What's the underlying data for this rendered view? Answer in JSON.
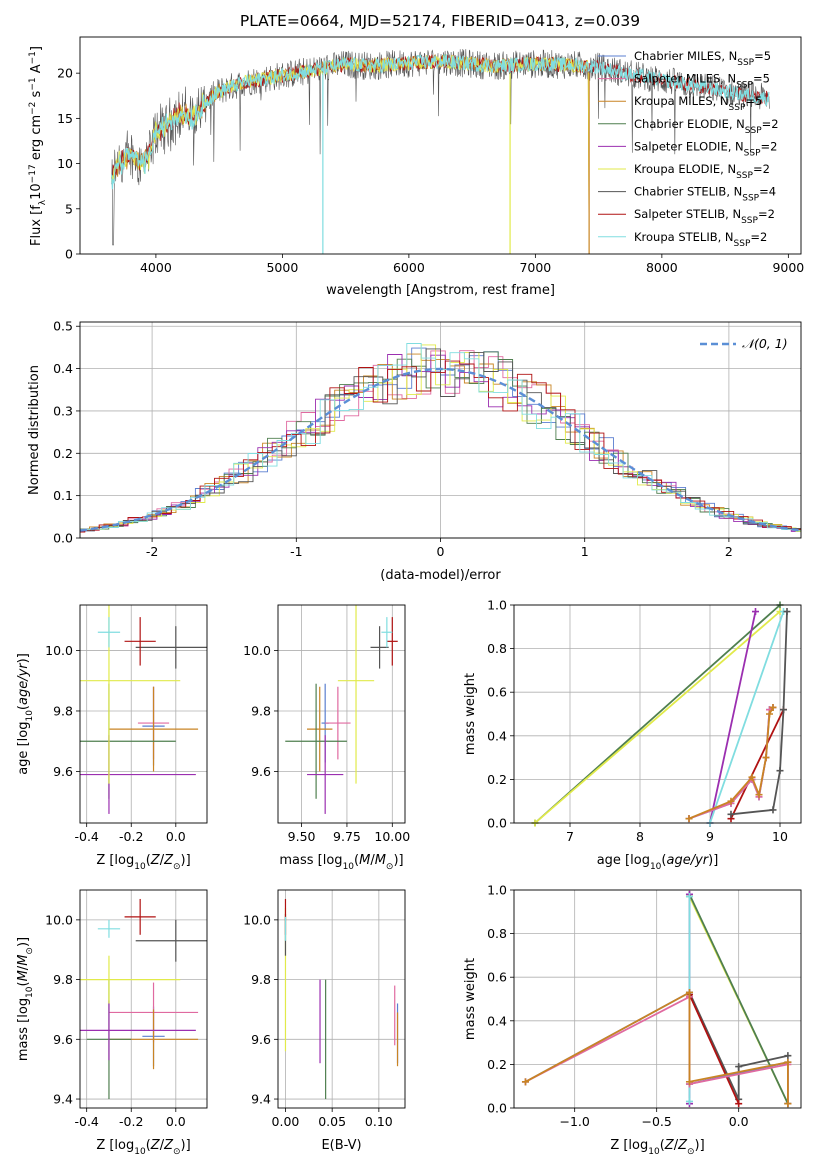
{
  "figure_title": "PLATE=0664, MJD=52174, FIBERID=0413, z=0.039",
  "colors": {
    "Chabrier MILES": "#5b7fd0",
    "Salpeter MILES": "#e06aa0",
    "Kroupa MILES": "#c98424",
    "Chabrier ELODIE": "#4f7f4f",
    "Salpeter ELODIE": "#9b2fb0",
    "Kroupa ELODIE": "#e1ea4a",
    "Chabrier STELIB": "#555555",
    "Salpeter STELIB": "#b01212",
    "Kroupa STELIB": "#80dde0"
  },
  "legend": {
    "panel1": [
      {
        "label": "Chabrier MILES, N",
        "sub": "SSP",
        "suffix": "=5",
        "color_key": "Chabrier MILES"
      },
      {
        "label": "Salpeter MILES, N",
        "sub": "SSP",
        "suffix": "=5",
        "color_key": "Salpeter MILES"
      },
      {
        "label": "Kroupa MILES, N",
        "sub": "SSP",
        "suffix": "=5",
        "color_key": "Kroupa MILES"
      },
      {
        "label": "Chabrier ELODIE, N",
        "sub": "SSP",
        "suffix": "=2",
        "color_key": "Chabrier ELODIE"
      },
      {
        "label": "Salpeter ELODIE, N",
        "sub": "SSP",
        "suffix": "=2",
        "color_key": "Salpeter ELODIE"
      },
      {
        "label": "Kroupa ELODIE, N",
        "sub": "SSP",
        "suffix": "=2",
        "color_key": "Kroupa ELODIE"
      },
      {
        "label": "Chabrier STELIB, N",
        "sub": "SSP",
        "suffix": "=4",
        "color_key": "Chabrier STELIB"
      },
      {
        "label": "Salpeter STELIB, N",
        "sub": "SSP",
        "suffix": "=2",
        "color_key": "Salpeter STELIB"
      },
      {
        "label": "Kroupa STELIB, N",
        "sub": "SSP",
        "suffix": "=2",
        "color_key": "Kroupa STELIB"
      }
    ],
    "panel2": [
      {
        "label": "𝒩(0, 1)",
        "color": "#5b8fd6"
      }
    ]
  },
  "chart_data": [
    {
      "id": "spectrum",
      "type": "line",
      "xlabel": "wavelength [Angstrom, rest frame]",
      "ylabel": "Flux [fλ10⁻¹⁷ erg cm⁻² s⁻¹ A⁻¹]",
      "xlim": [
        3400,
        9100
      ],
      "ylim": [
        0,
        24
      ],
      "xticks": [
        4000,
        5000,
        6000,
        7000,
        8000,
        9000
      ],
      "yticks": [
        0,
        5,
        10,
        15,
        20
      ],
      "grid": false,
      "legend_position": "top-right",
      "continuum": {
        "x": [
          3650,
          3700,
          3800,
          3900,
          3950,
          4000,
          4100,
          4200,
          4300,
          4400,
          4500,
          4700,
          4900,
          5100,
          5300,
          5500,
          5700,
          5900,
          6100,
          6300,
          6500,
          6700,
          6900,
          7100,
          7300,
          7500,
          7700,
          7900,
          8100,
          8300,
          8500,
          8700,
          8850
        ],
        "y": [
          8,
          10,
          11,
          10,
          11,
          13.5,
          14.5,
          15.5,
          15,
          17,
          18,
          19,
          19.5,
          20,
          20.5,
          21,
          20.8,
          21,
          21.2,
          21.3,
          21,
          20.8,
          21,
          21,
          20.9,
          20.7,
          20,
          19.5,
          19,
          18.5,
          18,
          17.5,
          17.2
        ]
      },
      "series_endpoints": {
        "MILES_ELODIE": [
          3650,
          7420
        ],
        "STELIB": [
          3650,
          8850
        ]
      }
    },
    {
      "id": "residuals",
      "type": "line",
      "xlabel": "(data-model)/error",
      "ylabel": "Normed distribution",
      "xlim": [
        -2.5,
        2.5
      ],
      "ylim": [
        0,
        0.51
      ],
      "xticks": [
        -2,
        -1,
        0,
        1,
        2
      ],
      "yticks": [
        0.0,
        0.1,
        0.2,
        0.3,
        0.4,
        0.5
      ],
      "grid": true,
      "legend_position": "top-right",
      "gaussian": {
        "mean": 0,
        "sigma": 1
      }
    },
    {
      "id": "Z_vs_age",
      "type": "scatter",
      "xlabel": "Z [log₁₀(Z/Z⊙)]",
      "ylabel": "age  [log₁₀(age/yr)]",
      "xlim": [
        -0.43,
        0.14
      ],
      "ylim": [
        9.43,
        10.15
      ],
      "xticks": [
        -0.4,
        -0.2,
        0.0
      ],
      "yticks": [
        9.6,
        9.8,
        10.0
      ],
      "grid": true,
      "points": [
        {
          "key": "Chabrier MILES",
          "x": -0.1,
          "y": 9.75,
          "xerr": 0.05,
          "yerr": 0.13
        },
        {
          "key": "Salpeter MILES",
          "x": -0.1,
          "y": 9.76,
          "xerr": 0.07,
          "yerr": 0.12
        },
        {
          "key": "Kroupa MILES",
          "x": -0.1,
          "y": 9.74,
          "xerr": 0.2,
          "yerr": 0.14
        },
        {
          "key": "Chabrier ELODIE",
          "x": -0.3,
          "y": 9.7,
          "xerr": 0.3,
          "yerr": 0.19
        },
        {
          "key": "Salpeter ELODIE",
          "x": -0.3,
          "y": 9.59,
          "xerr": 0.39,
          "yerr": 0.13
        },
        {
          "key": "Kroupa ELODIE",
          "x": -0.3,
          "y": 9.9,
          "xerr": 0.32,
          "yerr": 0.34
        },
        {
          "key": "Chabrier STELIB",
          "x": 0.0,
          "y": 10.01,
          "xerr": 0.18,
          "yerr": 0.07
        },
        {
          "key": "Salpeter STELIB",
          "x": -0.16,
          "y": 10.03,
          "xerr": 0.07,
          "yerr": 0.08
        },
        {
          "key": "Kroupa STELIB",
          "x": -0.3,
          "y": 10.06,
          "xerr": 0.05,
          "yerr": 0.05
        }
      ]
    },
    {
      "id": "mass_vs_age",
      "type": "scatter",
      "xlabel": "mass [log₁₀(M/M⊙)]",
      "ylabel": "",
      "xlim": [
        9.37,
        10.07
      ],
      "ylim": [
        9.43,
        10.15
      ],
      "xticks": [
        9.5,
        9.75,
        10.0
      ],
      "yticks": [
        9.6,
        9.8,
        10.0
      ],
      "grid": true,
      "points": [
        {
          "key": "Chabrier MILES",
          "x": 9.63,
          "y": 9.76,
          "xerr": 0.02,
          "yerr": 0.13
        },
        {
          "key": "Salpeter MILES",
          "x": 9.7,
          "y": 9.76,
          "xerr": 0.07,
          "yerr": 0.12
        },
        {
          "key": "Kroupa MILES",
          "x": 9.6,
          "y": 9.74,
          "xerr": 0.07,
          "yerr": 0.14
        },
        {
          "key": "Chabrier ELODIE",
          "x": 9.58,
          "y": 9.7,
          "xerr": 0.17,
          "yerr": 0.19
        },
        {
          "key": "Salpeter ELODIE",
          "x": 9.63,
          "y": 9.59,
          "xerr": 0.1,
          "yerr": 0.13
        },
        {
          "key": "Kroupa ELODIE",
          "x": 9.8,
          "y": 9.9,
          "xerr": 0.1,
          "yerr": 0.34
        },
        {
          "key": "Chabrier STELIB",
          "x": 9.93,
          "y": 10.01,
          "xerr": 0.05,
          "yerr": 0.07
        },
        {
          "key": "Salpeter STELIB",
          "x": 10.0,
          "y": 10.03,
          "xerr": 0.03,
          "yerr": 0.08
        },
        {
          "key": "Kroupa STELIB",
          "x": 9.97,
          "y": 10.06,
          "xerr": 0.03,
          "yerr": 0.05
        }
      ]
    },
    {
      "id": "age_vs_massweight",
      "type": "line",
      "xlabel": "age  [log₁₀(age/yr)]",
      "ylabel": "mass weight",
      "xlim": [
        6.2,
        10.3
      ],
      "ylim": [
        0,
        1
      ],
      "xticks": [
        7,
        8,
        9,
        10
      ],
      "yticks": [
        0.0,
        0.2,
        0.4,
        0.6,
        0.8,
        1.0
      ],
      "grid": true,
      "series": [
        {
          "key": "Chabrier ELODIE",
          "x": [
            6.5,
            10.0
          ],
          "y": [
            0.0,
            1.0
          ]
        },
        {
          "key": "Kroupa ELODIE",
          "x": [
            6.5,
            10.0
          ],
          "y": [
            0.0,
            0.97
          ]
        },
        {
          "key": "Salpeter ELODIE",
          "x": [
            9.0,
            9.65
          ],
          "y": [
            0.0,
            0.97
          ]
        },
        {
          "key": "Kroupa STELIB",
          "x": [
            9.0,
            10.05
          ],
          "y": [
            0.0,
            0.97
          ]
        },
        {
          "key": "Salpeter STELIB",
          "x": [
            9.3,
            10.05
          ],
          "y": [
            0.02,
            0.52
          ]
        },
        {
          "key": "Chabrier STELIB",
          "x": [
            9.3,
            9.9,
            10.0,
            10.05,
            10.1
          ],
          "y": [
            0.04,
            0.06,
            0.24,
            0.52,
            0.97
          ]
        },
        {
          "key": "Chabrier MILES",
          "x": [
            8.7,
            9.3,
            9.6,
            9.7,
            9.8,
            9.85,
            9.9
          ],
          "y": [
            0.02,
            0.09,
            0.2,
            0.12,
            0.3,
            0.52,
            0.53
          ]
        },
        {
          "key": "Salpeter MILES",
          "x": [
            8.7,
            9.3,
            9.6,
            9.7,
            9.8,
            9.85,
            9.9
          ],
          "y": [
            0.02,
            0.09,
            0.2,
            0.12,
            0.3,
            0.52,
            0.53
          ]
        },
        {
          "key": "Kroupa MILES",
          "x": [
            8.7,
            9.3,
            9.6,
            9.7,
            9.8,
            9.85,
            9.9
          ],
          "y": [
            0.02,
            0.1,
            0.21,
            0.13,
            0.3,
            0.5,
            0.53
          ]
        }
      ]
    },
    {
      "id": "Z_vs_mass",
      "type": "scatter",
      "xlabel": "Z [log₁₀(Z/Z⊙)]",
      "ylabel": "mass [log₁₀(M/M⊙)]",
      "xlim": [
        -0.43,
        0.14
      ],
      "ylim": [
        9.37,
        10.1
      ],
      "xticks": [
        -0.4,
        -0.2,
        0.0
      ],
      "yticks": [
        9.4,
        9.6,
        9.8,
        10.0
      ],
      "grid": true,
      "points": [
        {
          "key": "Chabrier MILES",
          "x": -0.1,
          "y": 9.61,
          "xerr": 0.05,
          "yerr": 0.1
        },
        {
          "key": "Salpeter MILES",
          "x": -0.1,
          "y": 9.69,
          "xerr": 0.2,
          "yerr": 0.1
        },
        {
          "key": "Kroupa MILES",
          "x": -0.1,
          "y": 9.6,
          "xerr": 0.2,
          "yerr": 0.1
        },
        {
          "key": "Chabrier ELODIE",
          "x": -0.3,
          "y": 9.6,
          "xerr": 0.1,
          "yerr": 0.2
        },
        {
          "key": "Salpeter ELODIE",
          "x": -0.3,
          "y": 9.63,
          "xerr": 0.39,
          "yerr": 0.1
        },
        {
          "key": "Kroupa ELODIE",
          "x": -0.3,
          "y": 9.8,
          "xerr": 0.32,
          "yerr": 0.08
        },
        {
          "key": "Chabrier STELIB",
          "x": 0.0,
          "y": 9.93,
          "xerr": 0.18,
          "yerr": 0.07
        },
        {
          "key": "Salpeter STELIB",
          "x": -0.16,
          "y": 10.01,
          "xerr": 0.07,
          "yerr": 0.06
        },
        {
          "key": "Kroupa STELIB",
          "x": -0.3,
          "y": 9.97,
          "xerr": 0.05,
          "yerr": 0.03
        }
      ]
    },
    {
      "id": "EBV_vs_mass",
      "type": "scatter",
      "xlabel": "E(B-V)",
      "ylabel": "",
      "xlim": [
        -0.008,
        0.128
      ],
      "ylim": [
        9.37,
        10.1
      ],
      "xticks": [
        0.0,
        0.05,
        0.1
      ],
      "yticks": [
        9.4,
        9.6,
        9.8,
        10.0
      ],
      "grid": true,
      "points": [
        {
          "key": "Chabrier MILES",
          "x": 0.12,
          "y": 9.62,
          "xerr": 0,
          "yerr": 0.1
        },
        {
          "key": "Salpeter MILES",
          "x": 0.117,
          "y": 9.68,
          "xerr": 0,
          "yerr": 0.1
        },
        {
          "key": "Kroupa MILES",
          "x": 0.12,
          "y": 9.6,
          "xerr": 0,
          "yerr": 0.09
        },
        {
          "key": "Chabrier ELODIE",
          "x": 0.043,
          "y": 9.6,
          "xerr": 0,
          "yerr": 0.2
        },
        {
          "key": "Salpeter ELODIE",
          "x": 0.037,
          "y": 9.66,
          "xerr": 0,
          "yerr": 0.14
        },
        {
          "key": "Kroupa ELODIE",
          "x": 0.0,
          "y": 9.8,
          "xerr": 0,
          "yerr": 0.24
        },
        {
          "key": "Chabrier STELIB",
          "x": 0.0,
          "y": 9.95,
          "xerr": 0,
          "yerr": 0.07
        },
        {
          "key": "Salpeter STELIB",
          "x": 0.0,
          "y": 10.01,
          "xerr": 0,
          "yerr": 0.06
        },
        {
          "key": "Kroupa STELIB",
          "x": 0.0,
          "y": 9.97,
          "xerr": 0,
          "yerr": 0.04
        }
      ]
    },
    {
      "id": "Z_vs_massweight",
      "type": "line",
      "xlabel": "Z [log₁₀(Z/Z⊙)]",
      "ylabel": "mass weight",
      "xlim": [
        -1.37,
        0.38
      ],
      "ylim": [
        0,
        1
      ],
      "xticks": [
        -1.0,
        -0.5,
        0.0
      ],
      "yticks": [
        0.0,
        0.2,
        0.4,
        0.6,
        0.8,
        1.0
      ],
      "grid": true,
      "series": [
        {
          "key": "Kroupa ELODIE",
          "x": [
            -0.3,
            0.3
          ],
          "y": [
            0.97,
            0.02
          ]
        },
        {
          "key": "Chabrier ELODIE",
          "x": [
            -0.3,
            0.3
          ],
          "y": [
            0.98,
            0.02
          ]
        },
        {
          "key": "Salpeter ELODIE",
          "x": [
            -0.3,
            -0.3
          ],
          "y": [
            0.02,
            0.98
          ]
        },
        {
          "key": "Kroupa STELIB",
          "x": [
            -0.3,
            -0.3
          ],
          "y": [
            0.03,
            0.97
          ]
        },
        {
          "key": "Chabrier STELIB",
          "x": [
            -0.3,
            0.0,
            0.0,
            0.3
          ],
          "y": [
            0.53,
            0.04,
            0.19,
            0.24
          ]
        },
        {
          "key": "Salpeter STELIB",
          "x": [
            -0.3,
            0.0
          ],
          "y": [
            0.52,
            0.02
          ]
        },
        {
          "key": "Chabrier MILES",
          "x": [
            -1.3,
            -0.3,
            -0.3,
            0.3,
            0.3
          ],
          "y": [
            0.12,
            0.53,
            0.11,
            0.21,
            0.02
          ]
        },
        {
          "key": "Salpeter MILES",
          "x": [
            -1.3,
            -0.3,
            -0.3,
            0.3,
            0.3
          ],
          "y": [
            0.12,
            0.51,
            0.11,
            0.2,
            0.02
          ]
        },
        {
          "key": "Kroupa MILES",
          "x": [
            -1.3,
            -0.3,
            -0.3,
            0.3,
            0.3
          ],
          "y": [
            0.12,
            0.53,
            0.12,
            0.21,
            0.02
          ]
        }
      ]
    }
  ]
}
